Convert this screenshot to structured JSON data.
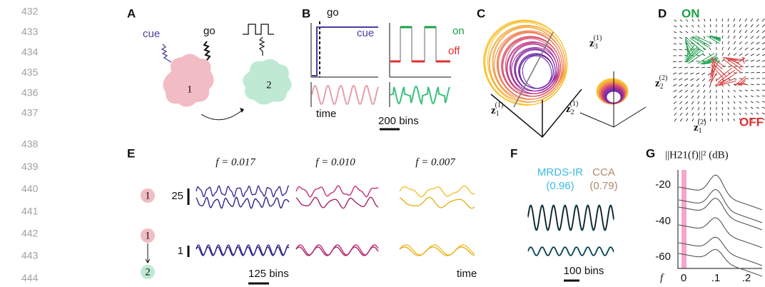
{
  "line_numbers": [
    "432",
    "433",
    "434",
    "435",
    "436",
    "437",
    "438",
    "439",
    "440",
    "441",
    "442",
    "443",
    "444"
  ],
  "panel_a": {
    "label": "A",
    "cue": "cue",
    "go": "go",
    "node_1": "1",
    "node_2": "2"
  },
  "panel_b": {
    "label": "B",
    "go": "go",
    "cue": "cue",
    "on": "on",
    "off": "off",
    "time": "time",
    "scale": "200 bins"
  },
  "panel_c": {
    "label": "C",
    "axes": [
      {
        "base": "z",
        "sub": "1",
        "sup": "(1)"
      },
      {
        "base": "z",
        "sub": "2",
        "sup": "(1)"
      },
      {
        "base": "z",
        "sub": "3",
        "sup": "(1)"
      }
    ]
  },
  "panel_d": {
    "label": "D",
    "on": "ON",
    "off": "OFF",
    "axes": [
      {
        "base": "z",
        "sub": "2",
        "sup": "(2)"
      },
      {
        "base": "z",
        "sub": "1",
        "sup": "(2)"
      }
    ]
  },
  "panel_e": {
    "label": "E",
    "frequencies": [
      "f = 0.017",
      "f = 0.010",
      "f = 0.007"
    ],
    "scale_top": "25",
    "scale_bottom": "1",
    "node_top": "1",
    "node_mid": "1",
    "node_bottom": "2",
    "scale": "125 bins",
    "time": "time"
  },
  "panel_f": {
    "label": "F",
    "method_a": "MRDS-IR",
    "score_a": "(0.96)",
    "method_b": "CCA",
    "score_b": "(0.79)",
    "scale": "100 bins"
  },
  "panel_g": {
    "label": "G",
    "title": "||H21(f)||² (dB)",
    "yticks": [
      "-20",
      "-40",
      "-60"
    ],
    "x_var": "f",
    "xticks": [
      "0",
      ".1",
      ".2"
    ]
  }
}
